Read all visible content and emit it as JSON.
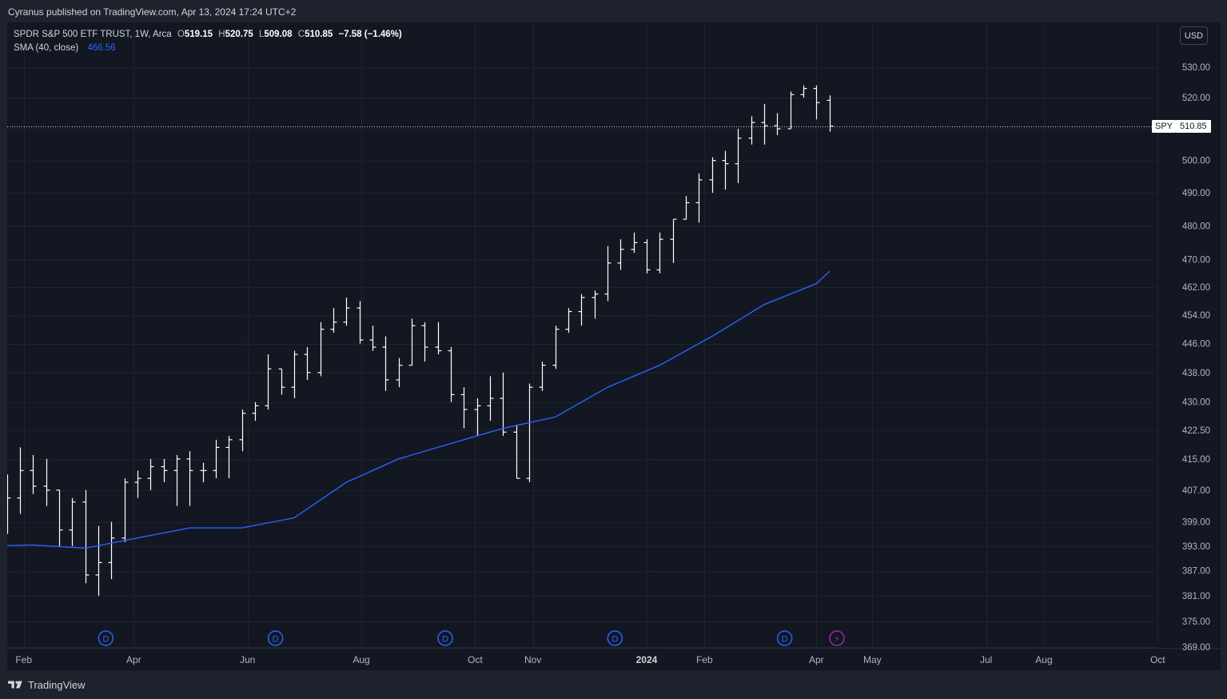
{
  "header": {
    "published": "Cyranus published on TradingView.com, Apr 13, 2024 17:24 UTC+2"
  },
  "legend": {
    "symbol_line": "SPDR S&P 500 ETF TRUST, 1W, Arca",
    "o_label": "O",
    "o_value": "519.15",
    "h_label": "H",
    "h_value": "520.75",
    "l_label": "L",
    "l_value": "509.08",
    "c_label": "C",
    "c_value": "510.85",
    "change": "−7.58 (−1.46%)",
    "sma_label": "SMA (40, close)",
    "sma_value": "466.56"
  },
  "currency_button": "USD",
  "price_tag": {
    "symbol": "SPY",
    "value": "510.85"
  },
  "footer": {
    "brand": "TradingView"
  },
  "colors": {
    "background": "#131722",
    "bars": "#ffffff",
    "sma": "#2962ff",
    "dividend_badge": "#2962ff",
    "earnings_badge": "#9c27b0"
  },
  "icons": {
    "dividend": "D",
    "earnings": "⚡"
  },
  "chart_data": {
    "type": "ohlc",
    "interval": "1W",
    "y_ticks": [
      "369.00",
      "375.00",
      "381.00",
      "387.00",
      "393.00",
      "399.00",
      "407.00",
      "415.00",
      "422.50",
      "430.00",
      "438.00",
      "446.00",
      "454.00",
      "462.00",
      "470.00",
      "480.00",
      "490.00",
      "500.00",
      "510.00",
      "520.00",
      "530.00"
    ],
    "x_ticks": [
      {
        "label": "Feb",
        "date": "2023-02-01"
      },
      {
        "label": "Apr",
        "date": "2023-04-01"
      },
      {
        "label": "Jun",
        "date": "2023-06-01"
      },
      {
        "label": "Aug",
        "date": "2023-08-01"
      },
      {
        "label": "Oct",
        "date": "2023-10-01"
      },
      {
        "label": "Nov",
        "date": "2023-11-01"
      },
      {
        "label": "2024",
        "date": "2024-01-01"
      },
      {
        "label": "Feb",
        "date": "2024-02-01"
      },
      {
        "label": "Apr",
        "date": "2024-04-01"
      },
      {
        "label": "May",
        "date": "2024-05-01"
      },
      {
        "label": "Jul",
        "date": "2024-07-01"
      },
      {
        "label": "Aug",
        "date": "2024-08-01"
      },
      {
        "label": "Oct",
        "date": "2024-10-01"
      }
    ],
    "last_price": 510.85,
    "series": [
      {
        "type": "ohlc",
        "bars": [
          [
            "2023-01-09",
            388.0,
            400.0,
            384.0,
            398.0
          ],
          [
            "2023-01-16",
            398.0,
            405.0,
            386.0,
            396.0
          ],
          [
            "2023-01-23",
            397.0,
            411.0,
            396.0,
            405.0
          ],
          [
            "2023-01-30",
            405.0,
            418.0,
            401.0,
            412.0
          ],
          [
            "2023-02-06",
            412.0,
            416.0,
            406.0,
            408.0
          ],
          [
            "2023-02-13",
            408.0,
            415.0,
            403.0,
            407.0
          ],
          [
            "2023-02-20",
            407.0,
            407.0,
            393.0,
            397.0
          ],
          [
            "2023-02-27",
            397.0,
            405.0,
            393.0,
            404.0
          ],
          [
            "2023-03-06",
            404.0,
            407.0,
            384.0,
            386.0
          ],
          [
            "2023-03-13",
            386.0,
            398.0,
            381.0,
            389.0
          ],
          [
            "2023-03-20",
            389.0,
            399.0,
            385.0,
            395.0
          ],
          [
            "2023-03-27",
            395.0,
            410.0,
            394.0,
            409.0
          ],
          [
            "2023-04-03",
            409.0,
            412.0,
            405.0,
            410.0
          ],
          [
            "2023-04-10",
            410.0,
            415.0,
            407.0,
            413.0
          ],
          [
            "2023-04-17",
            413.0,
            415.0,
            409.0,
            412.0
          ],
          [
            "2023-04-24",
            412.0,
            416.0,
            403.0,
            415.0
          ],
          [
            "2023-05-01",
            415.0,
            417.0,
            403.0,
            412.0
          ],
          [
            "2023-05-08",
            412.0,
            414.0,
            409.0,
            412.0
          ],
          [
            "2023-05-15",
            412.0,
            420.0,
            410.0,
            418.0
          ],
          [
            "2023-05-22",
            418.0,
            421.0,
            410.0,
            420.0
          ],
          [
            "2023-05-29",
            420.0,
            428.0,
            417.0,
            427.0
          ],
          [
            "2023-06-05",
            427.0,
            430.0,
            425.0,
            429.0
          ],
          [
            "2023-06-12",
            429.0,
            443.0,
            428.0,
            439.0
          ],
          [
            "2023-06-19",
            439.0,
            439.0,
            432.0,
            434.0
          ],
          [
            "2023-06-26",
            434.0,
            444.0,
            431.0,
            443.0
          ],
          [
            "2023-07-03",
            443.0,
            445.0,
            436.0,
            438.0
          ],
          [
            "2023-07-10",
            438.0,
            452.0,
            437.0,
            450.0
          ],
          [
            "2023-07-17",
            450.0,
            456.0,
            449.0,
            452.0
          ],
          [
            "2023-07-24",
            452.0,
            459.0,
            451.0,
            456.0
          ],
          [
            "2023-07-31",
            456.0,
            458.0,
            446.0,
            447.0
          ],
          [
            "2023-08-07",
            447.0,
            451.0,
            444.0,
            445.0
          ],
          [
            "2023-08-14",
            445.0,
            448.0,
            433.0,
            436.0
          ],
          [
            "2023-08-21",
            436.0,
            442.0,
            434.0,
            440.0
          ],
          [
            "2023-08-28",
            440.0,
            453.0,
            440.0,
            451.0
          ],
          [
            "2023-09-04",
            451.0,
            452.0,
            441.0,
            445.0
          ],
          [
            "2023-09-11",
            445.0,
            452.0,
            443.0,
            444.0
          ],
          [
            "2023-09-18",
            444.0,
            445.0,
            430.0,
            432.0
          ],
          [
            "2023-09-25",
            432.0,
            434.0,
            423.0,
            428.0
          ],
          [
            "2023-10-02",
            428.0,
            431.0,
            421.0,
            429.0
          ],
          [
            "2023-10-09",
            429.0,
            437.0,
            425.0,
            431.0
          ],
          [
            "2023-10-16",
            431.0,
            438.0,
            421.0,
            422.0
          ],
          [
            "2023-10-23",
            422.0,
            424.0,
            410.0,
            410.0
          ],
          [
            "2023-10-30",
            410.0,
            435.0,
            409.0,
            434.0
          ],
          [
            "2023-11-06",
            434.0,
            441.0,
            433.0,
            440.0
          ],
          [
            "2023-11-13",
            440.0,
            451.0,
            439.0,
            450.0
          ],
          [
            "2023-11-20",
            450.0,
            456.0,
            449.0,
            455.0
          ],
          [
            "2023-11-27",
            455.0,
            460.0,
            451.0,
            459.0
          ],
          [
            "2023-12-04",
            459.0,
            461.0,
            453.0,
            460.0
          ],
          [
            "2023-12-11",
            460.0,
            474.0,
            458.0,
            469.0
          ],
          [
            "2023-12-18",
            469.0,
            476.0,
            467.0,
            473.0
          ],
          [
            "2023-12-25",
            473.0,
            478.0,
            472.0,
            475.0
          ],
          [
            "2024-01-01",
            475.0,
            476.0,
            466.0,
            467.0
          ],
          [
            "2024-01-08",
            467.0,
            478.0,
            466.0,
            476.0
          ],
          [
            "2024-01-15",
            476.0,
            482.0,
            469.0,
            482.0
          ],
          [
            "2024-01-22",
            482.0,
            489.0,
            482.0,
            487.0
          ],
          [
            "2024-01-29",
            487.0,
            496.0,
            481.0,
            494.0
          ],
          [
            "2024-02-05",
            494.0,
            501.0,
            490.0,
            500.0
          ],
          [
            "2024-02-12",
            500.0,
            503.0,
            491.0,
            499.0
          ],
          [
            "2024-02-19",
            499.0,
            510.0,
            493.0,
            507.0
          ],
          [
            "2024-02-26",
            507.0,
            514.0,
            505.0,
            512.0
          ],
          [
            "2024-03-04",
            512.0,
            518.0,
            505.0,
            511.0
          ],
          [
            "2024-03-11",
            511.0,
            515.0,
            508.0,
            510.0
          ],
          [
            "2024-03-18",
            510.0,
            522.0,
            510.0,
            521.0
          ],
          [
            "2024-03-25",
            521.0,
            524.0,
            520.0,
            523.0
          ],
          [
            "2024-04-01",
            523.0,
            524.0,
            513.0,
            518.4
          ],
          [
            "2024-04-08",
            519.15,
            520.75,
            509.08,
            510.85
          ]
        ]
      },
      {
        "name": "SMA (40, close)",
        "type": "line",
        "points": [
          [
            "2023-01-09",
            393.0
          ],
          [
            "2023-02-06",
            393.3
          ],
          [
            "2023-03-06",
            392.5
          ],
          [
            "2023-04-03",
            395.0
          ],
          [
            "2023-05-01",
            397.5
          ],
          [
            "2023-05-29",
            397.5
          ],
          [
            "2023-06-26",
            400.0
          ],
          [
            "2023-07-24",
            409.0
          ],
          [
            "2023-08-21",
            415.0
          ],
          [
            "2023-09-18",
            419.0
          ],
          [
            "2023-10-16",
            423.0
          ],
          [
            "2023-11-13",
            426.0
          ],
          [
            "2023-12-11",
            434.0
          ],
          [
            "2024-01-08",
            440.0
          ],
          [
            "2024-02-05",
            448.0
          ],
          [
            "2024-03-04",
            457.0
          ],
          [
            "2024-04-01",
            463.0
          ],
          [
            "2024-04-08",
            466.56
          ]
        ]
      }
    ],
    "dividends": [
      "2023-03-17",
      "2023-06-16",
      "2023-09-15",
      "2023-12-15",
      "2024-03-15"
    ],
    "earnings": [
      "2024-04-12"
    ]
  }
}
